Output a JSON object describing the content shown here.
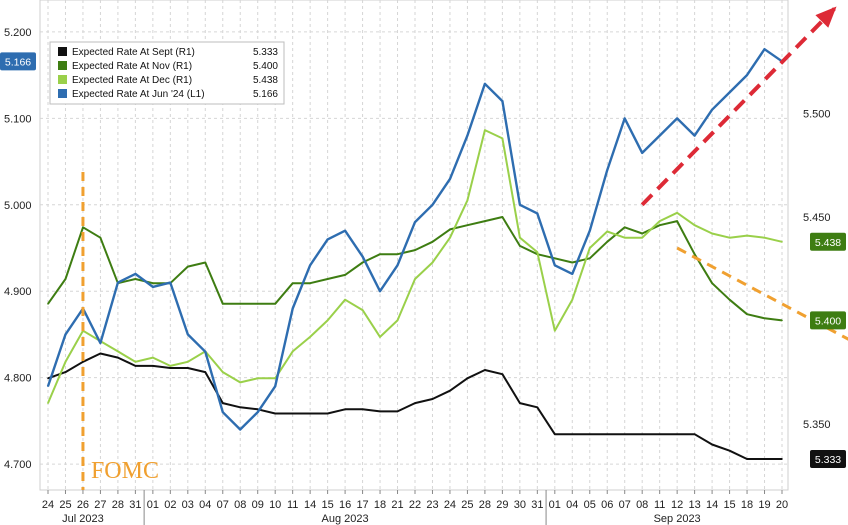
{
  "chart_data": {
    "type": "line",
    "title": "",
    "annotation": "FOMC",
    "left_axis": {
      "ticks": [
        "5.200",
        "5.100",
        "5.000",
        "4.900",
        "4.800",
        "4.700"
      ],
      "ylim": [
        4.67,
        5.23
      ]
    },
    "right_axis": {
      "ticks": [
        "5.500",
        "5.450",
        "5.350"
      ],
      "ylim": [
        5.318,
        5.552
      ]
    },
    "x_days": [
      "24",
      "25",
      "26",
      "27",
      "28",
      "31",
      "01",
      "02",
      "03",
      "04",
      "07",
      "08",
      "09",
      "10",
      "11",
      "14",
      "15",
      "16",
      "17",
      "18",
      "21",
      "22",
      "23",
      "24",
      "25",
      "28",
      "29",
      "30",
      "31",
      "01",
      "04",
      "05",
      "06",
      "07",
      "08",
      "11",
      "12",
      "13",
      "14",
      "15",
      "18",
      "19",
      "20"
    ],
    "months": [
      {
        "label": "Jul 2023",
        "day_index": 2
      },
      {
        "label": "Aug 2023",
        "day_index": 17
      },
      {
        "label": "Sep 2023",
        "day_index": 36
      }
    ],
    "legend": [
      {
        "name": "Expected Rate At Sept (R1)",
        "value": "5.333",
        "color": "#111111"
      },
      {
        "name": "Expected Rate At Nov (R1)",
        "value": "5.400",
        "color": "#3e7d12"
      },
      {
        "name": "Expected Rate At Dec (R1)",
        "value": "5.438",
        "color": "#9ad04a"
      },
      {
        "name": "Expected Rate At Jun '24 (L1)",
        "value": "5.166",
        "color": "#2e6db0"
      }
    ],
    "end_tags": [
      {
        "axis": "left",
        "label": "5.166",
        "value": 5.166,
        "color": "#2e6db0"
      },
      {
        "axis": "right",
        "label": "5.438",
        "value": 5.438,
        "color": "#3e7d12"
      },
      {
        "axis": "right",
        "label": "5.400",
        "value": 5.4,
        "color": "#3e7d12"
      },
      {
        "axis": "right",
        "label": "5.333",
        "value": 5.333,
        "color": "#111111"
      }
    ],
    "series": [
      {
        "name": "Expected Rate At Sept (R1)",
        "axis": "right",
        "color": "#111111",
        "values": [
          5.372,
          5.375,
          5.38,
          5.384,
          5.382,
          5.378,
          5.378,
          5.377,
          5.377,
          5.375,
          5.36,
          5.358,
          5.357,
          5.355,
          5.355,
          5.355,
          5.355,
          5.357,
          5.357,
          5.356,
          5.356,
          5.36,
          5.362,
          5.366,
          5.372,
          5.376,
          5.374,
          5.36,
          5.358,
          5.345,
          5.345,
          5.345,
          5.345,
          5.345,
          5.345,
          5.345,
          5.345,
          5.345,
          5.34,
          5.337,
          5.333,
          5.333,
          5.333
        ]
      },
      {
        "name": "Expected Rate At Nov (R1)",
        "axis": "right",
        "color": "#3e7d12",
        "values": [
          5.408,
          5.42,
          5.445,
          5.44,
          5.418,
          5.42,
          5.418,
          5.418,
          5.426,
          5.428,
          5.408,
          5.408,
          5.408,
          5.408,
          5.418,
          5.418,
          5.42,
          5.422,
          5.428,
          5.432,
          5.432,
          5.434,
          5.438,
          5.444,
          5.446,
          5.448,
          5.45,
          5.436,
          5.432,
          5.43,
          5.428,
          5.43,
          5.438,
          5.445,
          5.442,
          5.446,
          5.448,
          5.432,
          5.418,
          5.41,
          5.403,
          5.401,
          5.4
        ]
      },
      {
        "name": "Expected Rate At Dec (R1)",
        "axis": "right",
        "color": "#9ad04a",
        "values": [
          5.36,
          5.38,
          5.395,
          5.39,
          5.385,
          5.38,
          5.382,
          5.378,
          5.38,
          5.385,
          5.375,
          5.37,
          5.372,
          5.372,
          5.385,
          5.392,
          5.4,
          5.41,
          5.405,
          5.392,
          5.4,
          5.42,
          5.428,
          5.44,
          5.458,
          5.492,
          5.488,
          5.44,
          5.433,
          5.395,
          5.41,
          5.435,
          5.443,
          5.44,
          5.44,
          5.448,
          5.452,
          5.446,
          5.442,
          5.44,
          5.441,
          5.44,
          5.438
        ]
      },
      {
        "name": "Expected Rate At Jun '24 (L1)",
        "axis": "left",
        "color": "#2e6db0",
        "values": [
          4.79,
          4.85,
          4.88,
          4.84,
          4.91,
          4.92,
          4.905,
          4.91,
          4.85,
          4.83,
          4.76,
          4.74,
          4.76,
          4.79,
          4.88,
          4.93,
          4.96,
          4.97,
          4.94,
          4.9,
          4.93,
          4.98,
          5.0,
          5.03,
          5.08,
          5.14,
          5.12,
          5.0,
          4.99,
          4.93,
          4.92,
          4.97,
          5.04,
          5.1,
          5.06,
          5.08,
          5.1,
          5.08,
          5.11,
          5.13,
          5.15,
          5.18,
          5.166
        ]
      }
    ],
    "trend_arrows": [
      {
        "label": "",
        "axis": "left",
        "color": "#dd2a36",
        "from": [
          34,
          5.0
        ],
        "to": [
          45,
          5.227
        ],
        "arrowhead": true
      },
      {
        "label": "",
        "axis": "right",
        "color": "#f0a030",
        "from": [
          36,
          5.435
        ],
        "to": [
          46,
          5.39
        ],
        "arrowhead": false
      }
    ],
    "fomc_marker": {
      "label": "FOMC",
      "day_index": 2,
      "color": "#f0a030"
    },
    "grid": true
  }
}
